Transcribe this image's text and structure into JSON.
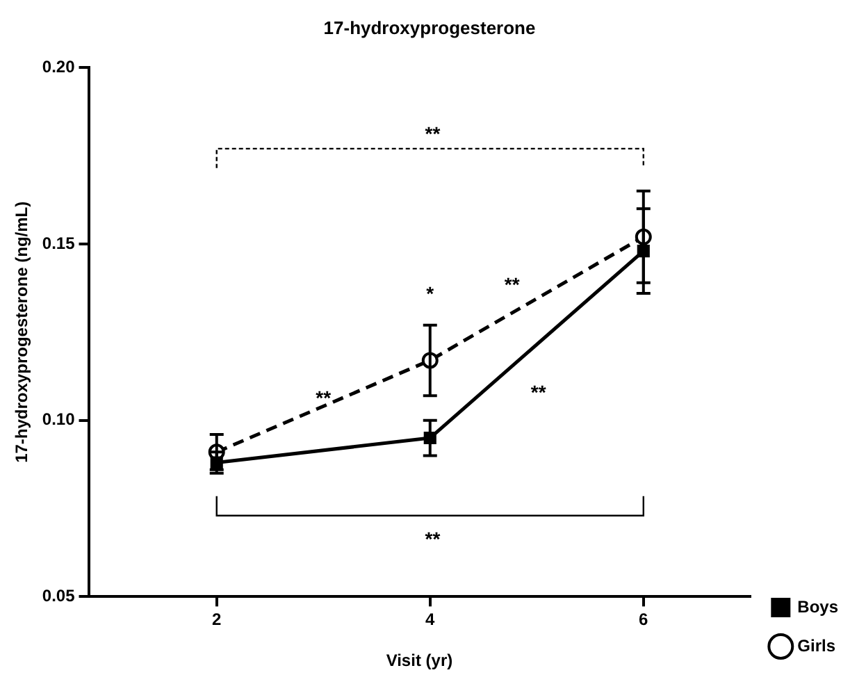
{
  "chart_data": {
    "type": "line",
    "title": "17-hydroxyprogesterone",
    "xlabel": "Visit (yr)",
    "ylabel": "17-hydroxyprogesterone (ng/mL)",
    "x": [
      2,
      4,
      6
    ],
    "series": [
      {
        "name": "Boys",
        "color": "#000000",
        "values": [
          0.088,
          0.095,
          0.148
        ],
        "errors": [
          0.003,
          0.005,
          0.012
        ],
        "marker": "square",
        "line_style": "solid"
      },
      {
        "name": "Girls",
        "color": "#000000",
        "values": [
          0.091,
          0.117,
          0.152
        ],
        "errors": [
          0.005,
          0.01,
          0.013
        ],
        "marker": "circle",
        "line_style": "dashed"
      }
    ],
    "xlim": [
      0.8,
      7
    ],
    "xticks": [
      2,
      4,
      6
    ],
    "ylim": [
      0.05,
      0.2
    ],
    "yticks": [
      0.05,
      {
        "value": 0.1,
        "label": "0.10"
      },
      0.15,
      {
        "value": 0.2,
        "label": "0.20"
      }
    ],
    "grid": false,
    "legend": "right",
    "annotations": [
      "**",
      "**",
      "*",
      {
        "text": "**",
        "x": 3,
        "y": 0.106
      },
      "**",
      "**"
    ]
  }
}
